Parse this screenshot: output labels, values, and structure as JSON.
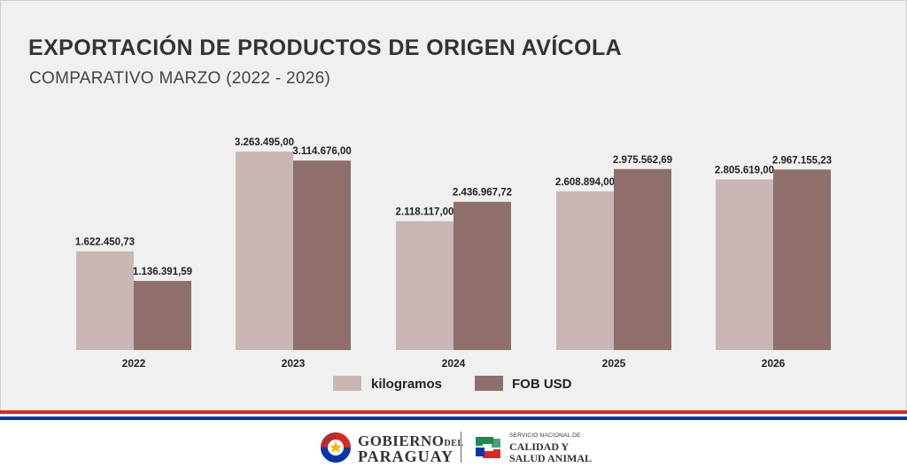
{
  "header": {
    "title": "EXPORTACIÓN DE PRODUCTOS DE ORIGEN AVÍCOLA",
    "subtitle": "COMPARATIVO MARZO (2022 - 2026)"
  },
  "chart_data": {
    "type": "bar",
    "title": "EXPORTACIÓN DE PRODUCTOS DE ORIGEN AVÍCOLA",
    "subtitle": "COMPARATIVO MARZO (2022 - 2026)",
    "xlabel": "",
    "ylabel": "",
    "ylim": [
      0,
      3263495
    ],
    "categories": [
      "2022",
      "2023",
      "2024",
      "2025",
      "2026"
    ],
    "series": [
      {
        "name": "kilogramos",
        "color": "#c9b7b5",
        "values": [
          1622450.73,
          3263495.0,
          2118117.0,
          2608894.0,
          2805619.0
        ],
        "labels": [
          "1.622.450,73",
          "3.263.495,00",
          "2.118.117,00",
          "2.608.894,00",
          "2.805.619,00"
        ]
      },
      {
        "name": "FOB USD",
        "color": "#8e6f6b",
        "values": [
          1136391.59,
          3114676.0,
          2436967.72,
          2975562.69,
          2967155.23
        ],
        "labels": [
          "1.136.391,59",
          "3.114.676,00",
          "2.436.967,72",
          "2.975.562,69",
          "2.967.155,23"
        ]
      }
    ],
    "legend_position": "bottom-center",
    "grid": false
  },
  "footer": {
    "gov_line1": "GOBIERNO",
    "gov_del": "DEL",
    "gov_line2": "PARAGUAY",
    "senacsa_small": "SERVICIO NACIONAL DE",
    "senacsa_line1": "CALIDAD Y",
    "senacsa_line2": "SALUD ANIMAL"
  },
  "colors": {
    "background": "#f0f0f0",
    "flag_red": "#d52b1e",
    "flag_blue": "#0038a8"
  }
}
